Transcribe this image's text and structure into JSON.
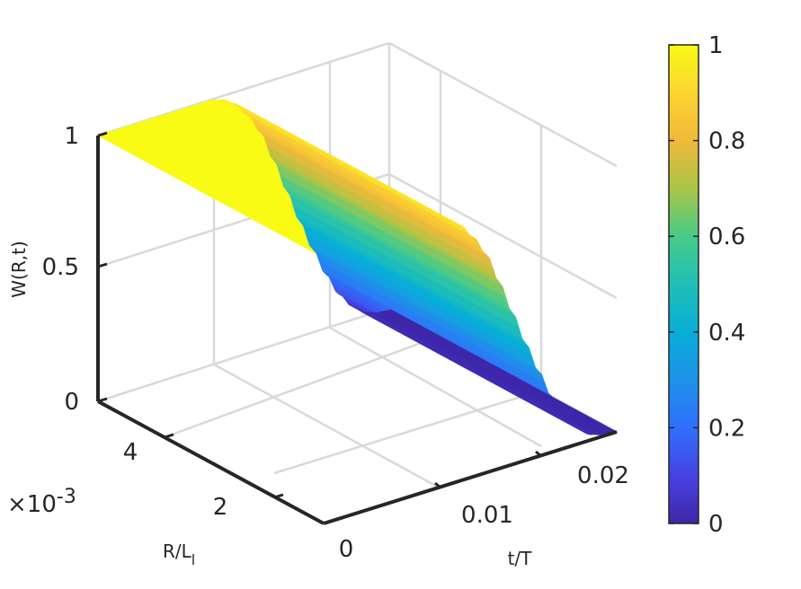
{
  "chart_data": {
    "type": "surface",
    "title": "",
    "xlabel": "t/T",
    "ylabel_main": "R/L",
    "ylabel_sub": "l",
    "zlabel": "W(R,t)",
    "x_ticks": [
      "0",
      "0.01",
      "0.02"
    ],
    "y_ticks": [
      "2",
      "4"
    ],
    "y_exponent": "×10",
    "y_exponent_power": "-3",
    "z_ticks": [
      "0",
      "0.5",
      "1"
    ],
    "xlim": [
      0,
      0.0225
    ],
    "ylim": [
      0,
      0.0055
    ],
    "zlim": [
      0,
      1
    ],
    "grid": true,
    "colormap": "parula",
    "colorbar": {
      "placement": "right",
      "range": [
        0,
        1
      ],
      "ticks": [
        "0",
        "0.2",
        "0.4",
        "0.6",
        "0.8",
        "1"
      ]
    },
    "profile": {
      "description_units": "W at sampled t/T values (uniform along R)",
      "t": [
        0,
        0.003,
        0.006,
        0.0085,
        0.0095,
        0.0105,
        0.0115,
        0.0125,
        0.0135,
        0.0145,
        0.0155,
        0.0165,
        0.0175,
        0.0185,
        0.0195,
        0.0205,
        0.0215,
        0.0225
      ],
      "W": [
        1.0,
        1.0,
        1.0,
        1.0,
        0.99,
        0.96,
        0.9,
        0.82,
        0.7,
        0.57,
        0.44,
        0.32,
        0.21,
        0.12,
        0.06,
        0.02,
        0.005,
        0.0
      ]
    }
  }
}
